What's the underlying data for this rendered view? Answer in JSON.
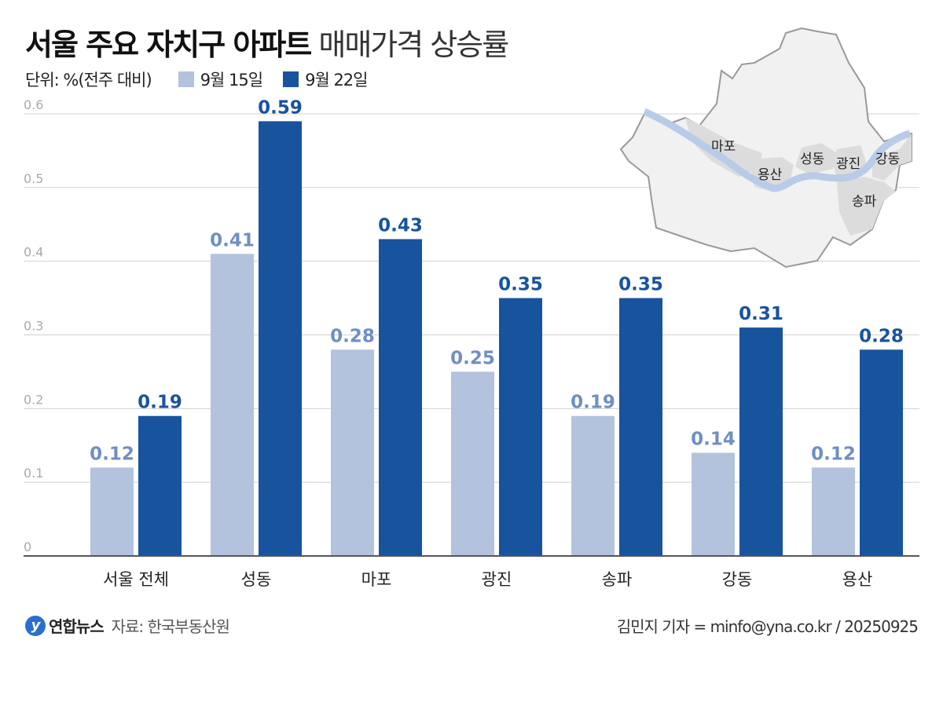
{
  "title": {
    "bold": "서울 주요 자치구 아파트",
    "light": "매매가격 상승률"
  },
  "unit_label": "단위: %(전주 대비)",
  "colors": {
    "series1": "#b3c3dd",
    "series2": "#18539e",
    "label1": "#6f8fc4",
    "label2": "#18539e",
    "grid": "#d0d0d0"
  },
  "chart_data": {
    "type": "bar",
    "categories": [
      "서울 전체",
      "성동",
      "마포",
      "광진",
      "송파",
      "강동",
      "용산"
    ],
    "series": [
      {
        "name": "9월 15일",
        "values": [
          0.12,
          0.41,
          0.28,
          0.25,
          0.19,
          0.14,
          0.12
        ]
      },
      {
        "name": "9월 22일",
        "values": [
          0.19,
          0.59,
          0.43,
          0.35,
          0.35,
          0.31,
          0.28
        ]
      }
    ],
    "ylim": [
      0,
      0.6
    ],
    "yticks": [
      "0",
      "0.1",
      "0.2",
      "0.3",
      "0.4",
      "0.5",
      "0.6"
    ],
    "grid": true,
    "legend": "top-left"
  },
  "map": {
    "labels": [
      "마포",
      "용산",
      "성동",
      "광진",
      "강동",
      "송파"
    ]
  },
  "footer": {
    "logo": "연합뉴스",
    "source": "자료: 한국부동산원",
    "credit": "김민지 기자 = minfo@yna.co.kr / 20250925"
  }
}
